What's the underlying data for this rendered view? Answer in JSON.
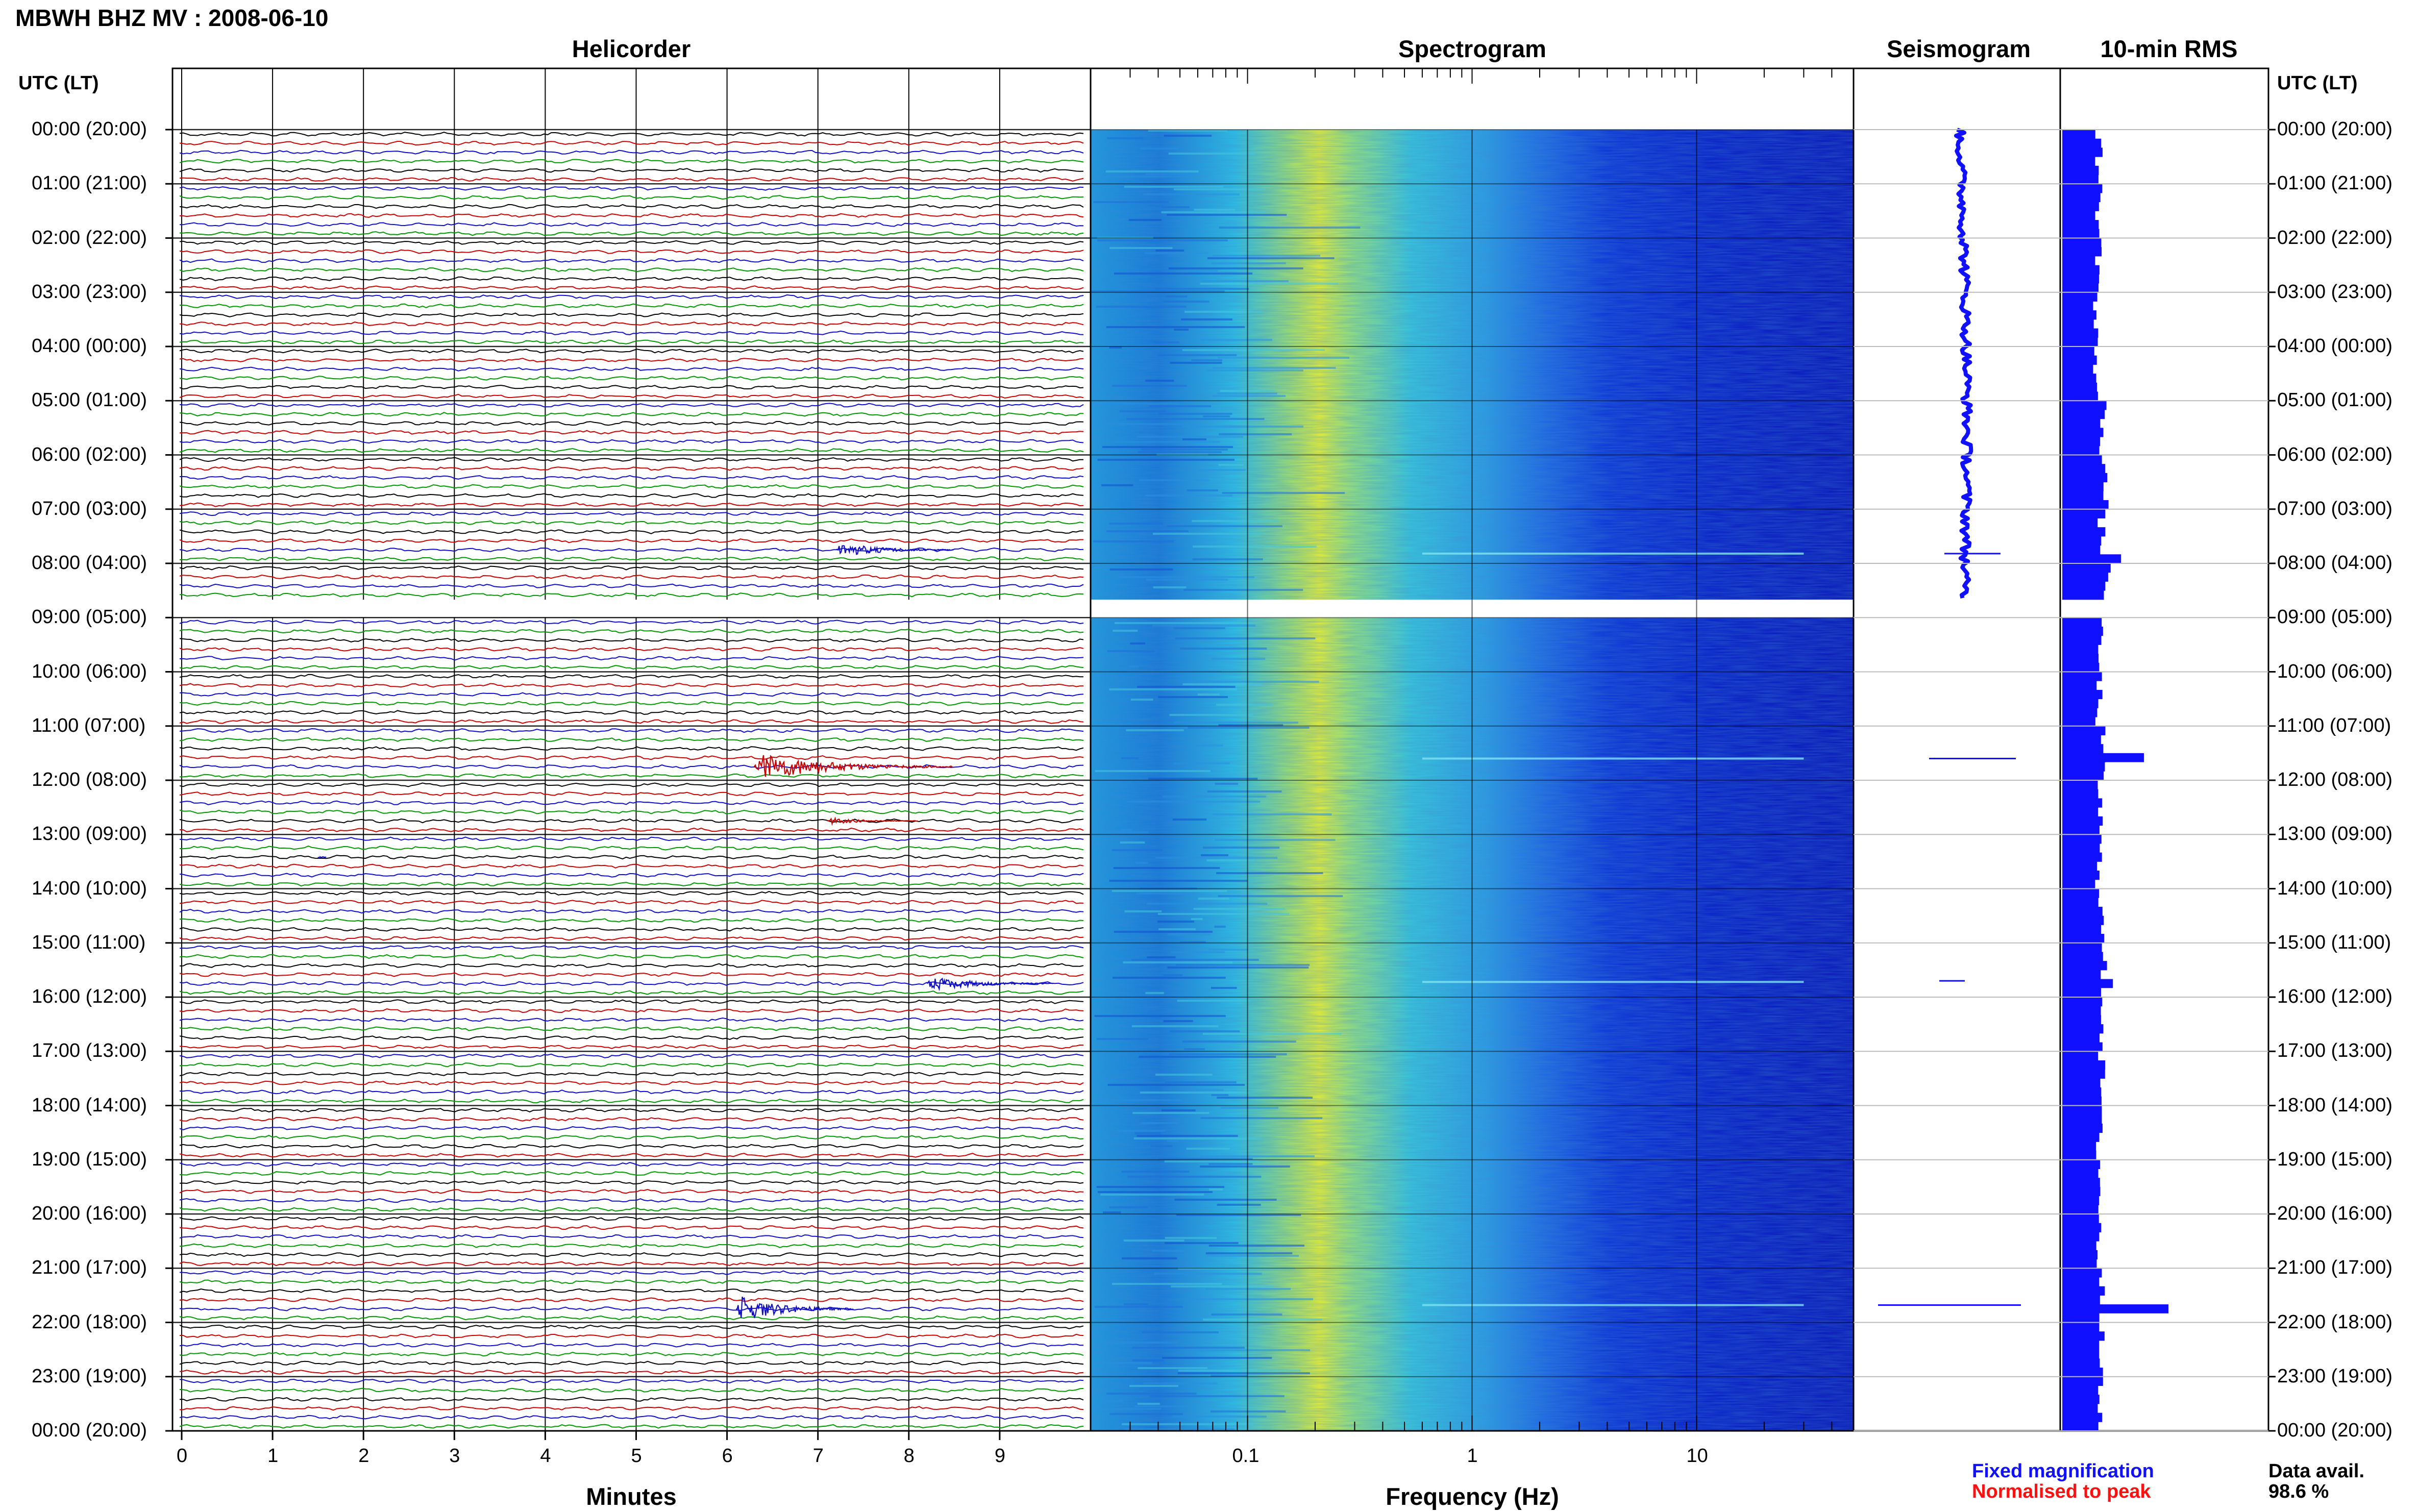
{
  "title": "MBWH BHZ MV : 2008-06-10",
  "panels": {
    "helicorder": "Helicorder",
    "spectrogram": "Spectrogram",
    "seismogram": "Seismogram",
    "rms": "10-min RMS"
  },
  "utc_label_left": "UTC (LT)",
  "utc_label_right": "UTC (LT)",
  "time_labels": [
    "00:00 (20:00)",
    "01:00 (21:00)",
    "02:00 (22:00)",
    "03:00 (23:00)",
    "04:00 (00:00)",
    "05:00 (01:00)",
    "06:00 (02:00)",
    "07:00 (03:00)",
    "08:00 (04:00)",
    "09:00 (05:00)",
    "10:00 (06:00)",
    "11:00 (07:00)",
    "12:00 (08:00)",
    "13:00 (09:00)",
    "14:00 (10:00)",
    "15:00 (11:00)",
    "16:00 (12:00)",
    "17:00 (13:00)",
    "18:00 (14:00)",
    "19:00 (15:00)",
    "20:00 (16:00)",
    "21:00 (17:00)",
    "22:00 (18:00)",
    "23:00 (19:00)",
    "00:00 (20:00)"
  ],
  "minutes_ticks": [
    "0",
    "1",
    "2",
    "3",
    "4",
    "5",
    "6",
    "7",
    "8",
    "9"
  ],
  "freq_ticks": [
    "0.1",
    "1",
    "10"
  ],
  "xlabel_helicorder": "Minutes",
  "xlabel_spectrogram": "Frequency (Hz)",
  "legend": {
    "fixed": "Fixed magnification",
    "normalised": "Normalised to peak"
  },
  "data_avail_label": "Data avail.",
  "data_avail_value": "98.6 %",
  "colors": {
    "trace_black": "#000000",
    "trace_red": "#cc0000",
    "trace_blue": "#1010cc",
    "trace_green": "#009900",
    "accent_blue": "#1010ff",
    "accent_red": "#ff1010"
  },
  "chart_data": {
    "type": "heatmap",
    "title": "MBWH BHZ MV : 2008-06-10",
    "date": "2008-06-10",
    "station": "MBWH",
    "channel": "BHZ",
    "network": "MV",
    "helicorder": {
      "minutes_range": [
        0,
        10
      ],
      "line_colors_cycle": [
        "black",
        "red",
        "blue",
        "green"
      ],
      "gap_utc": [
        "08:40",
        "09:00"
      ],
      "events": [
        {
          "utc_hour": 7,
          "start_min": 7.2,
          "duration_min": 1.3,
          "amplitude": "medium",
          "color": "blue"
        },
        {
          "utc_hour": 11,
          "start_min": 6.3,
          "duration_min": 2.2,
          "amplitude": "large",
          "color": "red"
        },
        {
          "utc_hour": 12,
          "start_min": 7.1,
          "duration_min": 1.0,
          "amplitude": "small",
          "color": "red"
        },
        {
          "utc_hour": 13,
          "start_min": 1.5,
          "duration_min": 0.1,
          "amplitude": "small",
          "color": "blue"
        },
        {
          "utc_hour": 15,
          "start_min": 8.2,
          "duration_min": 1.4,
          "amplitude": "medium",
          "color": "blue"
        },
        {
          "utc_hour": 21,
          "start_min": 6.1,
          "duration_min": 1.3,
          "amplitude": "large",
          "color": "blue"
        }
      ]
    },
    "spectrogram": {
      "freq_range_hz": [
        0.02,
        50
      ],
      "x_scale": "log",
      "energy_peak_hz": 0.25
    },
    "rms_10min": {
      "utc_hours": [
        0,
        1,
        2,
        3,
        4,
        5,
        6,
        7,
        8,
        9,
        10,
        11,
        12,
        13,
        14,
        15,
        16,
        17,
        18,
        19,
        20,
        21,
        22,
        23
      ],
      "relative_level": [
        0.45,
        0.45,
        0.45,
        0.4,
        0.42,
        0.5,
        0.52,
        0.48,
        0.55,
        0.45,
        0.45,
        0.48,
        0.46,
        0.45,
        0.48,
        0.5,
        0.5,
        0.48,
        0.45,
        0.46,
        0.45,
        0.48,
        0.5,
        0.45
      ],
      "peaks": [
        {
          "utc": "07:50",
          "relative_level": 0.72
        },
        {
          "utc": "11:30",
          "relative_level": 1.0
        },
        {
          "utc": "15:40",
          "relative_level": 0.62
        },
        {
          "utc": "21:40",
          "relative_level": 1.3
        }
      ]
    }
  }
}
